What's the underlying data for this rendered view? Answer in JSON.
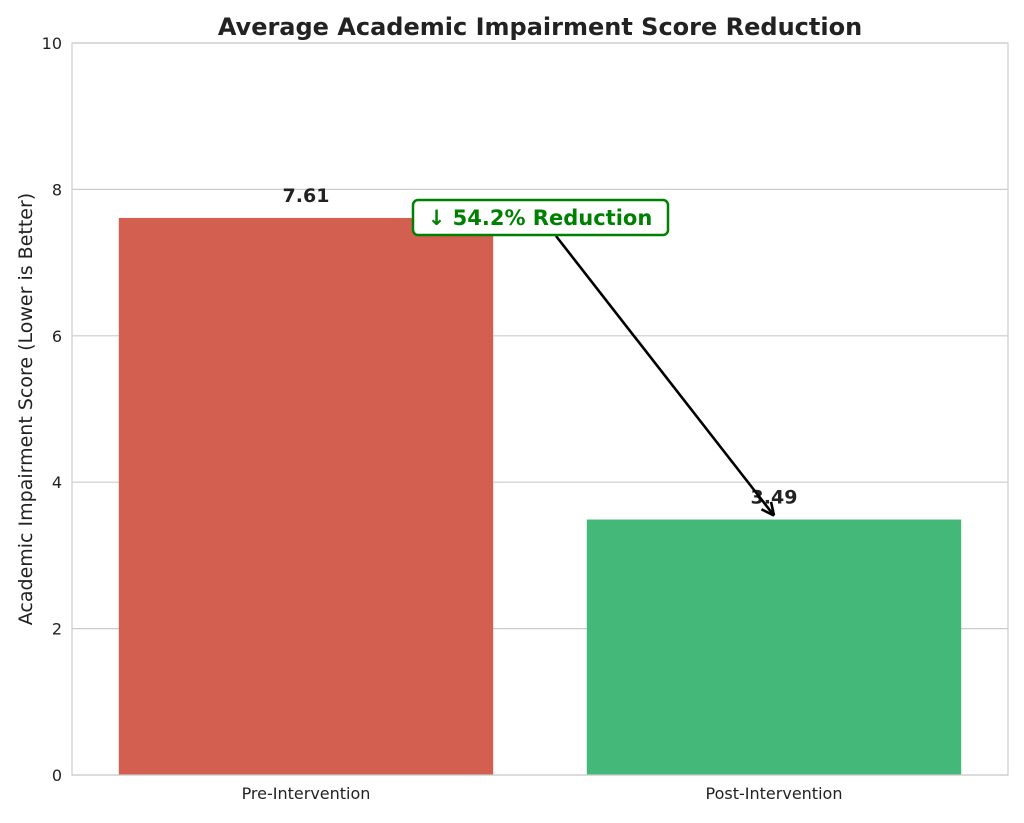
{
  "chart_data": {
    "type": "bar",
    "title": "Average Academic Impairment Score Reduction",
    "xlabel": "",
    "ylabel": "Academic Impairment Score (Lower is Better)",
    "ylim": [
      0,
      10
    ],
    "yticks": [
      0,
      2,
      4,
      6,
      8,
      10
    ],
    "grid": true,
    "categories": [
      "Pre-Intervention",
      "Post-Intervention"
    ],
    "values": [
      7.61,
      3.49
    ],
    "data_labels": [
      "7.61",
      "3.49"
    ],
    "colors": [
      "#d35f50",
      "#44b878"
    ],
    "annotation": {
      "text": "↓ 54.2% Reduction",
      "color": "#008000",
      "arrow_target": {
        "category": "Post-Intervention",
        "value": 3.49
      }
    }
  }
}
